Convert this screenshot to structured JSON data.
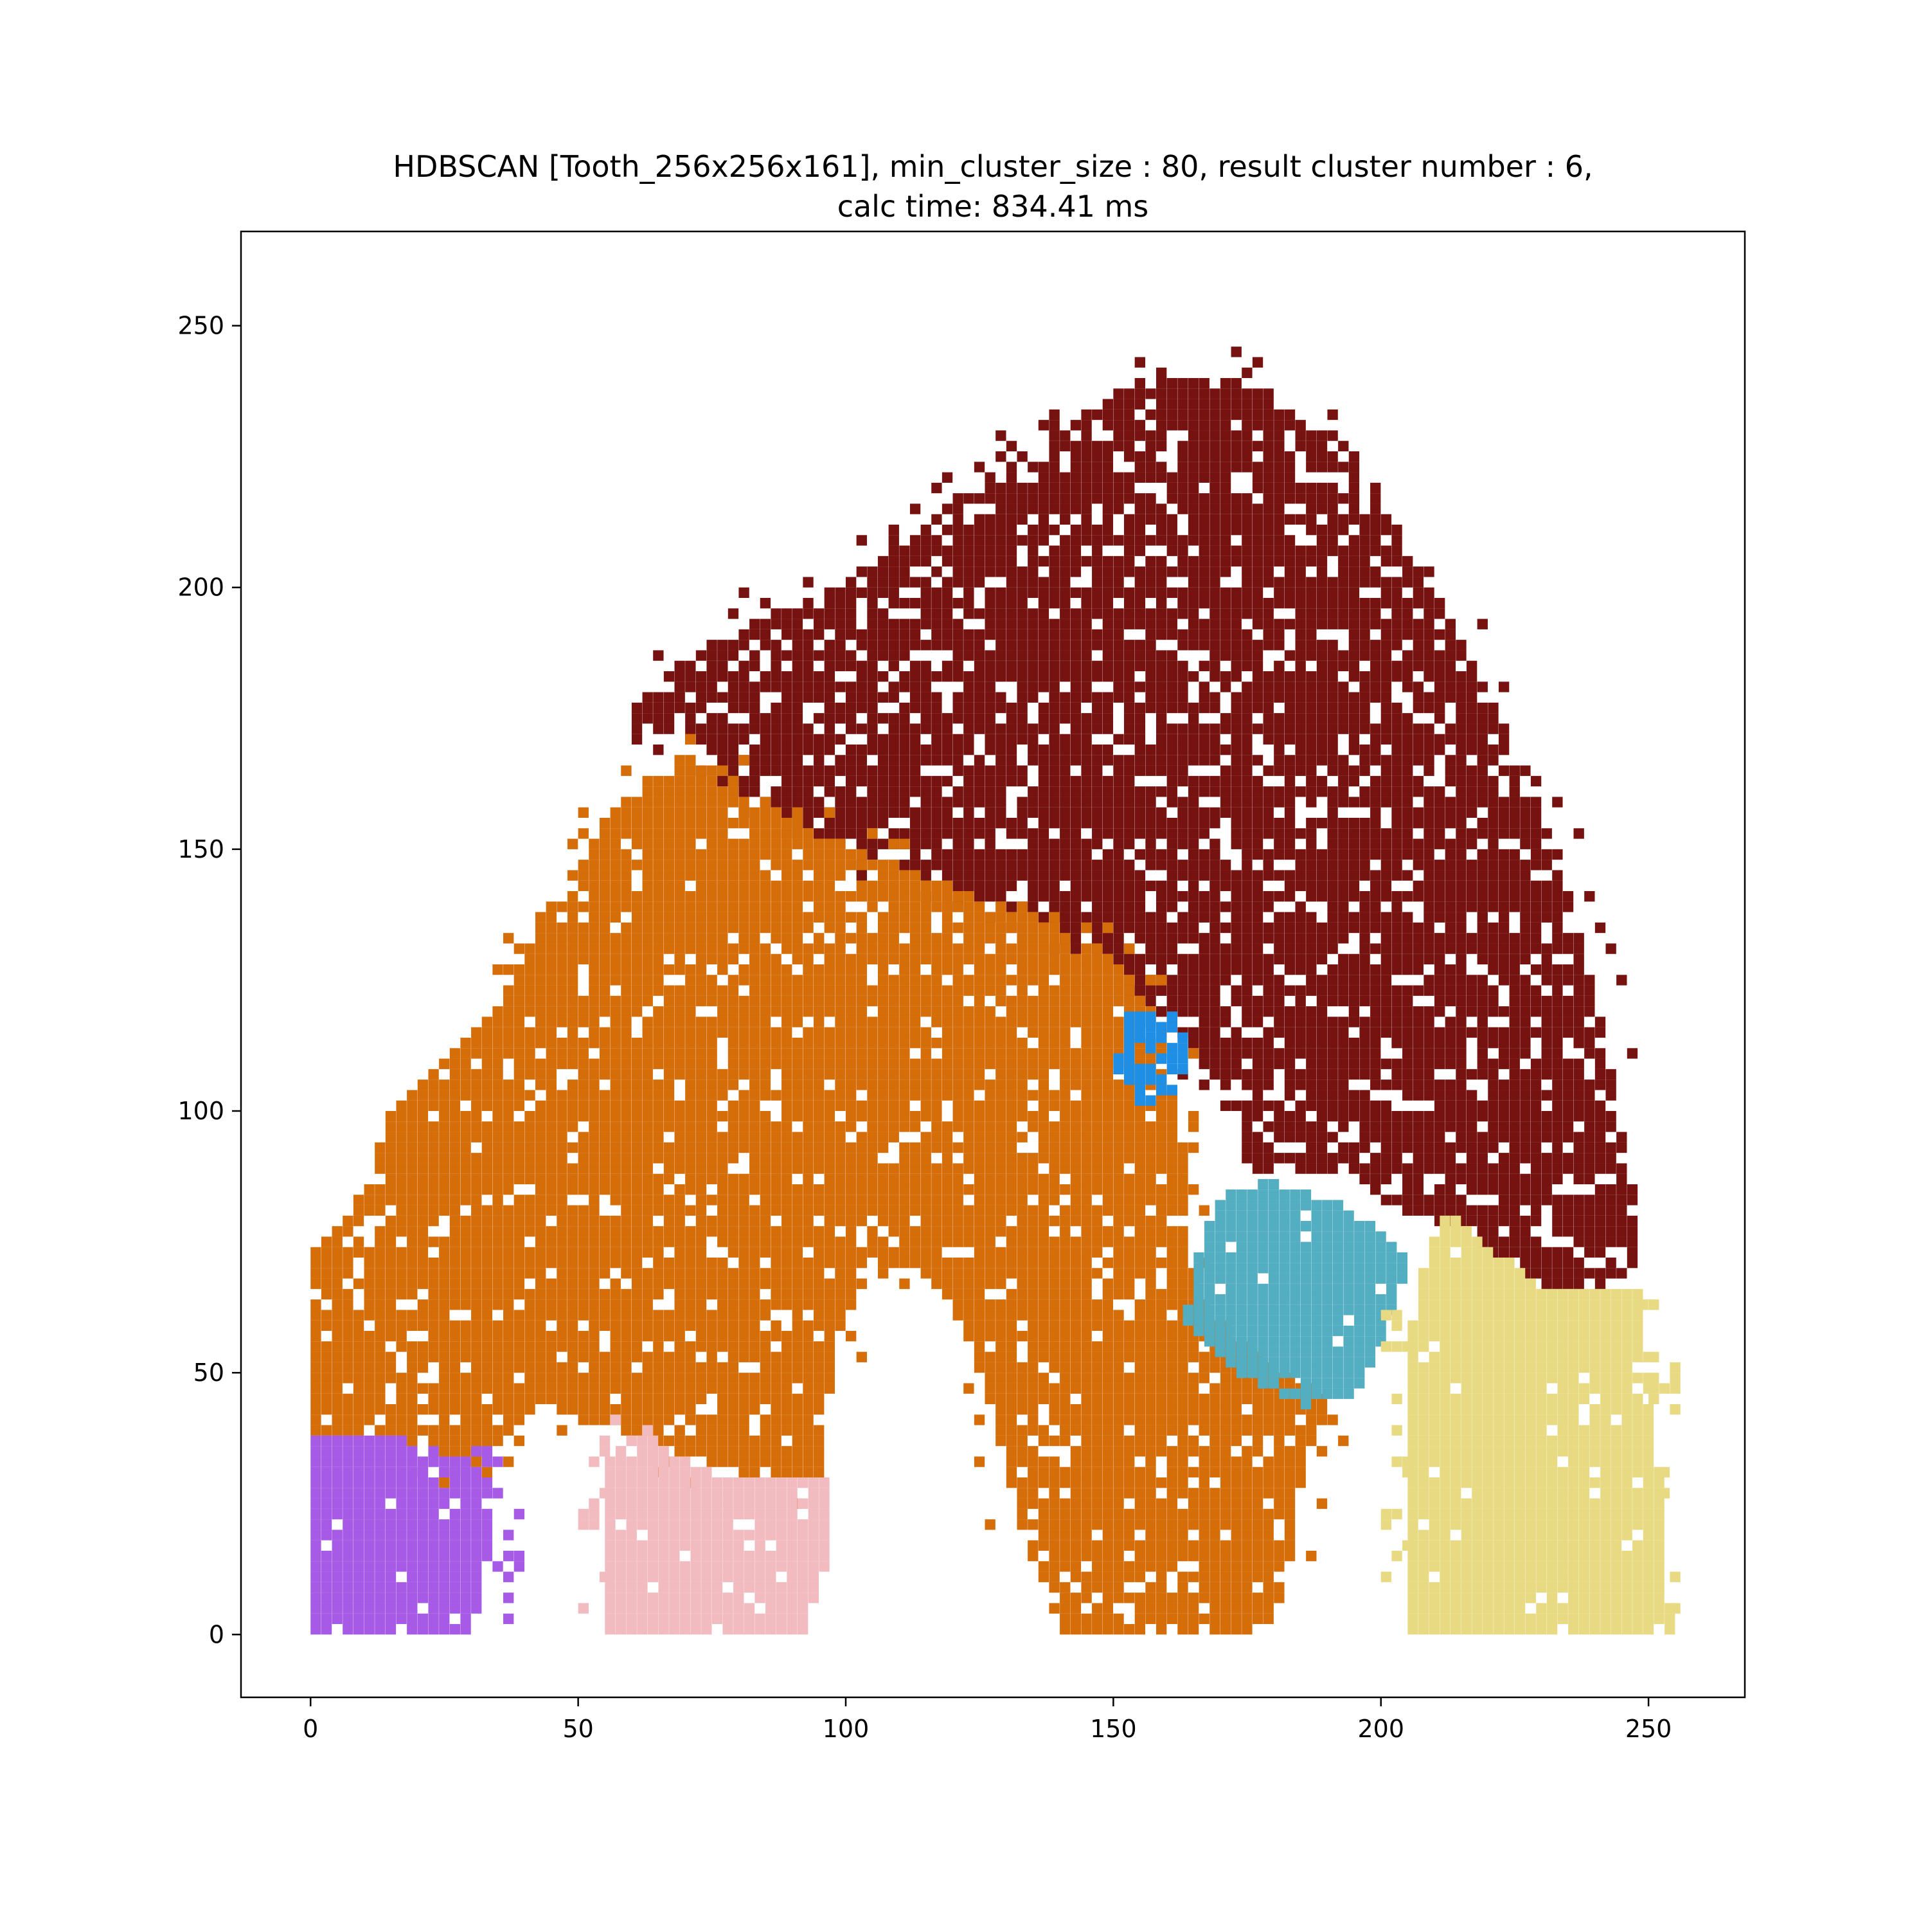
{
  "chart_data": {
    "type": "scatter",
    "title_line1": "HDBSCAN [Tooth_256x256x161], min_cluster_size : 80, result cluster number : 6,",
    "title_line2": "calc time: 834.41 ms",
    "xlabel": "",
    "ylabel": "",
    "xlim": [
      -13,
      268
    ],
    "ylim": [
      -12,
      268
    ],
    "x_ticks": [
      0,
      50,
      100,
      150,
      200,
      250
    ],
    "y_ticks": [
      0,
      50,
      100,
      150,
      200,
      250
    ],
    "grid": false,
    "legend": "none",
    "seed": 12345,
    "clusters": [
      {
        "color": "#76120f",
        "density": 0.82,
        "fringe": {
          "density": 0.22,
          "x": [
            60,
            250
          ],
          "y": [
            100,
            258
          ]
        },
        "boundary": [
          [
            60,
            170
          ],
          [
            70,
            172
          ],
          [
            80,
            160
          ],
          [
            95,
            152
          ],
          [
            120,
            142
          ],
          [
            135,
            137
          ],
          [
            150,
            128
          ],
          [
            158,
            118
          ],
          [
            165,
            110
          ],
          [
            172,
            100
          ],
          [
            175,
            88
          ],
          [
            190,
            88
          ],
          [
            205,
            80
          ],
          [
            215,
            77
          ],
          [
            228,
            66
          ],
          [
            245,
            66
          ],
          [
            248,
            72
          ],
          [
            246,
            90
          ],
          [
            240,
            120
          ],
          [
            232,
            150
          ],
          [
            222,
            175
          ],
          [
            212,
            195
          ],
          [
            200,
            215
          ],
          [
            185,
            232
          ],
          [
            170,
            240
          ],
          [
            155,
            240
          ],
          [
            140,
            230
          ],
          [
            125,
            220
          ],
          [
            110,
            208
          ],
          [
            95,
            198
          ],
          [
            80,
            192
          ],
          [
            68,
            185
          ],
          [
            60,
            178
          ]
        ]
      },
      {
        "color": "#d56d09",
        "density": 0.9,
        "fringe": {
          "density": 0.18,
          "x": [
            20,
            195
          ],
          "y": [
            10,
            190
          ]
        },
        "boundary": [
          [
            0,
            38
          ],
          [
            0,
            72
          ],
          [
            8,
            82
          ],
          [
            15,
            100
          ],
          [
            25,
            110
          ],
          [
            35,
            120
          ],
          [
            45,
            140
          ],
          [
            58,
            160
          ],
          [
            70,
            168
          ],
          [
            80,
            162
          ],
          [
            95,
            152
          ],
          [
            120,
            142
          ],
          [
            135,
            137
          ],
          [
            150,
            128
          ],
          [
            158,
            118
          ],
          [
            160,
            105
          ],
          [
            163,
            92
          ],
          [
            164,
            72
          ],
          [
            168,
            60
          ],
          [
            180,
            50
          ],
          [
            190,
            45
          ],
          [
            185,
            30
          ],
          [
            182,
            10
          ],
          [
            178,
            0
          ],
          [
            140,
            0
          ],
          [
            132,
            20
          ],
          [
            128,
            40
          ],
          [
            120,
            62
          ],
          [
            112,
            70
          ],
          [
            105,
            68
          ],
          [
            98,
            58
          ],
          [
            96,
            42
          ],
          [
            96,
            30
          ],
          [
            80,
            30
          ],
          [
            66,
            35
          ],
          [
            60,
            38
          ],
          [
            50,
            40
          ],
          [
            42,
            44
          ],
          [
            38,
            38
          ],
          [
            30,
            32
          ],
          [
            18,
            36
          ],
          [
            10,
            38
          ]
        ]
      },
      {
        "color": "#a65ae6",
        "density": 0.95,
        "fringe": {
          "density": 0.35,
          "x": [
            30,
            44
          ],
          "y": [
            2,
            34
          ]
        },
        "boundary": [
          [
            0,
            0
          ],
          [
            0,
            38
          ],
          [
            15,
            38
          ],
          [
            25,
            34
          ],
          [
            32,
            32
          ],
          [
            34,
            20
          ],
          [
            30,
            0
          ]
        ]
      },
      {
        "color": "#f2bbc0",
        "density": 0.95,
        "fringe": {
          "density": 0.4,
          "x": [
            42,
            62
          ],
          "y": [
            4,
            40
          ]
        },
        "boundary": [
          [
            55,
            0
          ],
          [
            55,
            32
          ],
          [
            60,
            39
          ],
          [
            68,
            34
          ],
          [
            75,
            30
          ],
          [
            96,
            30
          ],
          [
            96,
            12
          ],
          [
            92,
            0
          ]
        ]
      },
      {
        "color": "#53aec2",
        "density": 0.96,
        "boundary": [
          [
            163,
            58
          ],
          [
            165,
            72
          ],
          [
            170,
            84
          ],
          [
            180,
            86
          ],
          [
            192,
            82
          ],
          [
            205,
            72
          ],
          [
            200,
            55
          ],
          [
            195,
            45
          ],
          [
            185,
            43
          ],
          [
            175,
            48
          ],
          [
            168,
            55
          ]
        ]
      },
      {
        "color": "#e8da82",
        "density": 0.95,
        "fringe": {
          "density": 0.35,
          "x": [
            182,
            255
          ],
          "y": [
            2,
            62
          ]
        },
        "boundary": [
          [
            205,
            0
          ],
          [
            205,
            58
          ],
          [
            208,
            72
          ],
          [
            212,
            80
          ],
          [
            222,
            72
          ],
          [
            230,
            66
          ],
          [
            248,
            66
          ],
          [
            250,
            50
          ],
          [
            252,
            25
          ],
          [
            254,
            0
          ]
        ]
      },
      {
        "color": "#1f8fe6",
        "density": 0.7,
        "boundary": [
          [
            150,
            110
          ],
          [
            152,
            118
          ],
          [
            160,
            119
          ],
          [
            165,
            112
          ],
          [
            162,
            102
          ],
          [
            155,
            101
          ],
          [
            150,
            105
          ]
        ]
      }
    ]
  }
}
